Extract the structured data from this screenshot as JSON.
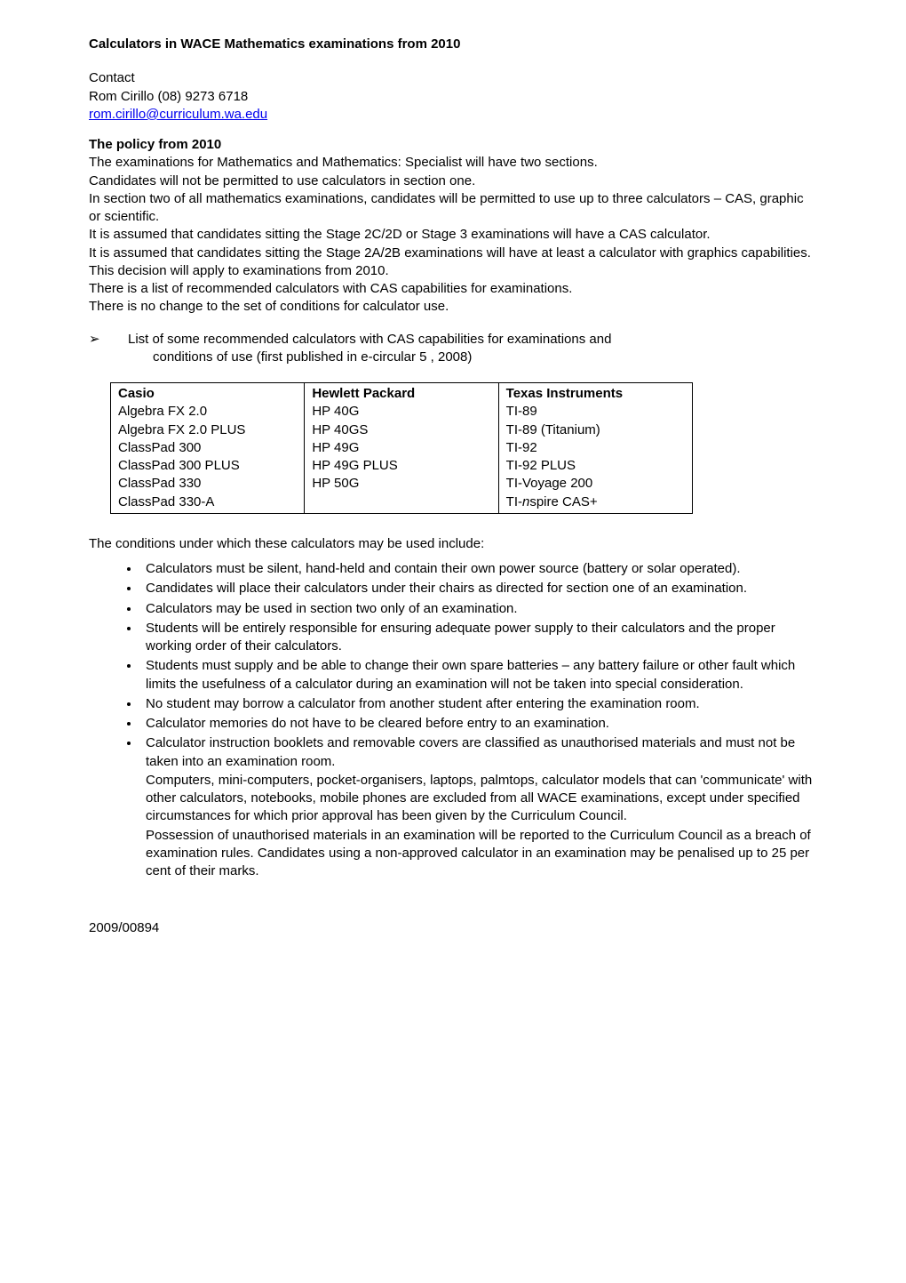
{
  "title": "Calculators in WACE Mathematics examinations from 2010",
  "contact": {
    "label": "Contact",
    "name_phone": "Rom Cirillo (08) 9273 6718",
    "email": "rom.cirillo@curriculum.wa.edu"
  },
  "policy_heading": "The policy from 2010",
  "policy_paragraphs": [
    "The examinations for Mathematics and Mathematics: Specialist will have two sections.",
    "Candidates will not be permitted to use calculators in section one.",
    "In section two of all mathematics examinations, candidates will be permitted to use up to three calculators – CAS, graphic or scientific.",
    "It is assumed that candidates sitting the Stage 2C/2D or Stage 3 examinations will have a CAS calculator.",
    "It is assumed that candidates sitting the Stage 2A/2B examinations will have at least a calculator with graphics capabilities.",
    "This decision will apply to examinations from 2010.",
    "There is a list of recommended calculators with CAS capabilities for examinations.",
    "There is no change to the set of conditions for calculator use."
  ],
  "arrow_item_line1": "List of some recommended calculators with CAS capabilities for examinations and",
  "arrow_item_line2": "conditions of use (first published in e-circular 5 , 2008)",
  "table": {
    "columns": [
      {
        "header": "Casio",
        "rows": [
          "Algebra FX 2.0",
          "Algebra FX 2.0 PLUS",
          "ClassPad 300",
          "ClassPad 300 PLUS",
          "ClassPad 330",
          "ClassPad 330-A"
        ]
      },
      {
        "header": "Hewlett Packard",
        "rows": [
          "HP 40G",
          "HP 40GS",
          "HP 49G",
          "HP 49G PLUS",
          "HP 50G"
        ]
      },
      {
        "header": "Texas Instruments",
        "rows": [
          "TI-89",
          "TI-89 (Titanium)",
          "TI-92",
          "TI-92 PLUS",
          "TI-Voyage 200"
        ]
      }
    ],
    "nspire_prefix": "TI-",
    "nspire_italic": "n",
    "nspire_suffix": "spire CAS+"
  },
  "conditions_intro": "The conditions under which these calculators may be used include:",
  "conditions": [
    "Calculators must be silent, hand-held and contain their own power source (battery or solar operated).",
    "Candidates will place their calculators under their chairs as directed for section one of an examination.",
    "Calculators may be used in section two only of an examination.",
    "Students will be entirely responsible for ensuring adequate power supply to their calculators and the proper working order of their calculators.",
    "Students must supply and be able to change their own spare batteries – any battery failure or other fault which limits the usefulness of a calculator during an examination will not be taken into special consideration.",
    "No student may borrow a calculator from another student after entering the examination room.",
    "Calculator memories do not have to be cleared before entry to an examination."
  ],
  "last_condition": {
    "p1": "Calculator instruction booklets and removable covers are classified as unauthorised materials and must not be taken into an examination room.",
    "p2": "Computers, mini-computers, pocket-organisers, laptops, palmtops, calculator models that can 'communicate' with other calculators, notebooks, mobile phones are excluded from all WACE examinations, except under specified circumstances for which prior approval has been given by the Curriculum Council.",
    "p3": "Possession of unauthorised materials in an examination will be reported to the Curriculum Council as a breach of examination rules. Candidates using a non-approved calculator in an examination may be penalised up to 25 per cent of their marks."
  },
  "footer_ref": "2009/00894"
}
